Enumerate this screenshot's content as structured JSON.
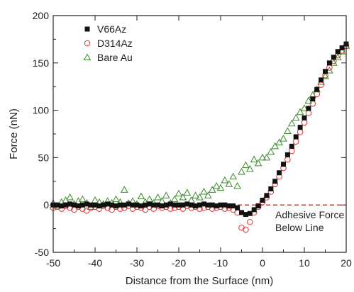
{
  "chart_data": {
    "type": "scatter",
    "xlabel": "Distance from the Surface (nm)",
    "ylabel": "Force (nN)",
    "xlim": [
      -50,
      20
    ],
    "ylim": [
      -50,
      200
    ],
    "xticks": [
      "-50",
      "-40",
      "-30",
      "-20",
      "-10",
      "0",
      "10",
      "20"
    ],
    "yticks": [
      "-50",
      "0",
      "50",
      "100",
      "150",
      "200"
    ],
    "legend_position": "top-left",
    "baseline": {
      "y": 0,
      "color": "#e0302a",
      "style": "dashed"
    },
    "annotation": {
      "lines": [
        "Adhesive Force",
        "Below Line"
      ],
      "x": 1,
      "y": -13
    },
    "series": [
      {
        "name": "V66Az",
        "marker": "square",
        "color": "#111111",
        "points": [
          [
            -50,
            0
          ],
          [
            -49,
            0
          ],
          [
            -48,
            -1
          ],
          [
            -47,
            0
          ],
          [
            -46,
            1
          ],
          [
            -45,
            0
          ],
          [
            -44,
            -1
          ],
          [
            -43,
            0
          ],
          [
            -42,
            1
          ],
          [
            -41,
            0
          ],
          [
            -40,
            0
          ],
          [
            -39,
            -1
          ],
          [
            -38,
            0
          ],
          [
            -37,
            1
          ],
          [
            -36,
            0
          ],
          [
            -35,
            -1
          ],
          [
            -34,
            0
          ],
          [
            -33,
            0
          ],
          [
            -32,
            1
          ],
          [
            -31,
            0
          ],
          [
            -30,
            0
          ],
          [
            -29,
            -1
          ],
          [
            -28,
            0
          ],
          [
            -27,
            1
          ],
          [
            -26,
            0
          ],
          [
            -25,
            0
          ],
          [
            -24,
            -1
          ],
          [
            -23,
            0
          ],
          [
            -22,
            1
          ],
          [
            -21,
            0
          ],
          [
            -20,
            0
          ],
          [
            -19,
            0
          ],
          [
            -18,
            1
          ],
          [
            -17,
            0
          ],
          [
            -16,
            -1
          ],
          [
            -15,
            0
          ],
          [
            -14,
            1
          ],
          [
            -13,
            0
          ],
          [
            -12,
            0
          ],
          [
            -11,
            -1
          ],
          [
            -10,
            0
          ],
          [
            -9,
            0
          ],
          [
            -8,
            -1
          ],
          [
            -7,
            -1
          ],
          [
            -6,
            -3
          ],
          [
            -5,
            -8
          ],
          [
            -4,
            -10
          ],
          [
            -3,
            -9
          ],
          [
            -2,
            -5
          ],
          [
            -1,
            -1
          ],
          [
            0,
            5
          ],
          [
            1,
            10
          ],
          [
            2,
            17
          ],
          [
            3,
            25
          ],
          [
            4,
            34
          ],
          [
            5,
            43
          ],
          [
            6,
            53
          ],
          [
            7,
            62
          ],
          [
            8,
            72
          ],
          [
            9,
            82
          ],
          [
            10,
            92
          ],
          [
            11,
            102
          ],
          [
            12,
            112
          ],
          [
            13,
            122
          ],
          [
            14,
            132
          ],
          [
            15,
            141
          ],
          [
            16,
            150
          ],
          [
            17,
            156
          ],
          [
            18,
            162
          ],
          [
            19,
            166
          ],
          [
            20,
            170
          ]
        ]
      },
      {
        "name": "D314Az",
        "marker": "circle",
        "color": "#e0302a",
        "points": [
          [
            -50,
            -3
          ],
          [
            -49,
            -2
          ],
          [
            -48,
            -4
          ],
          [
            -47,
            -1
          ],
          [
            -46,
            -3
          ],
          [
            -45,
            -5
          ],
          [
            -44,
            -2
          ],
          [
            -43,
            -4
          ],
          [
            -42,
            -6
          ],
          [
            -41,
            -3
          ],
          [
            -40,
            -2
          ],
          [
            -39,
            -4
          ],
          [
            -38,
            -1
          ],
          [
            -37,
            -3
          ],
          [
            -36,
            -5
          ],
          [
            -35,
            -2
          ],
          [
            -34,
            -4
          ],
          [
            -33,
            -3
          ],
          [
            -32,
            -1
          ],
          [
            -31,
            -4
          ],
          [
            -30,
            -2
          ],
          [
            -29,
            -3
          ],
          [
            -28,
            -5
          ],
          [
            -27,
            -2
          ],
          [
            -26,
            -4
          ],
          [
            -25,
            -1
          ],
          [
            -24,
            -3
          ],
          [
            -23,
            -2
          ],
          [
            -22,
            -4
          ],
          [
            -21,
            -3
          ],
          [
            -20,
            -2
          ],
          [
            -19,
            -4
          ],
          [
            -18,
            -1
          ],
          [
            -17,
            -3
          ],
          [
            -16,
            -2
          ],
          [
            -15,
            -4
          ],
          [
            -14,
            -3
          ],
          [
            -13,
            -2
          ],
          [
            -12,
            -4
          ],
          [
            -11,
            -3
          ],
          [
            -10,
            -2
          ],
          [
            -9,
            -4
          ],
          [
            -8,
            -3
          ],
          [
            -7,
            -5
          ],
          [
            -6,
            -8
          ],
          [
            -5,
            -24
          ],
          [
            -4,
            -26
          ],
          [
            -3,
            -18
          ],
          [
            -2,
            -8
          ],
          [
            -1,
            -2
          ],
          [
            0,
            3
          ],
          [
            1,
            8
          ],
          [
            2,
            14
          ],
          [
            3,
            22
          ],
          [
            4,
            30
          ],
          [
            5,
            39
          ],
          [
            6,
            48
          ],
          [
            7,
            57
          ],
          [
            8,
            67
          ],
          [
            9,
            77
          ],
          [
            10,
            87
          ],
          [
            11,
            97
          ],
          [
            12,
            107
          ],
          [
            13,
            117
          ],
          [
            14,
            127
          ],
          [
            15,
            137
          ],
          [
            16,
            145
          ],
          [
            17,
            152
          ],
          [
            18,
            158
          ],
          [
            19,
            163
          ],
          [
            20,
            168
          ]
        ]
      },
      {
        "name": "Bare Au",
        "marker": "triangle",
        "color": "#3a8a2a",
        "points": [
          [
            -50,
            2
          ],
          [
            -49,
            -1
          ],
          [
            -48,
            3
          ],
          [
            -47,
            5
          ],
          [
            -46,
            8
          ],
          [
            -45,
            1
          ],
          [
            -44,
            4
          ],
          [
            -43,
            6
          ],
          [
            -42,
            2
          ],
          [
            -41,
            -2
          ],
          [
            -40,
            5
          ],
          [
            -39,
            3
          ],
          [
            -38,
            1
          ],
          [
            -37,
            4
          ],
          [
            -36,
            2
          ],
          [
            -35,
            6
          ],
          [
            -34,
            3
          ],
          [
            -33,
            16
          ],
          [
            -32,
            2
          ],
          [
            -31,
            4
          ],
          [
            -30,
            1
          ],
          [
            -29,
            9
          ],
          [
            -28,
            3
          ],
          [
            -27,
            6
          ],
          [
            -26,
            2
          ],
          [
            -25,
            8
          ],
          [
            -24,
            4
          ],
          [
            -23,
            10
          ],
          [
            -22,
            2
          ],
          [
            -21,
            6
          ],
          [
            -20,
            12
          ],
          [
            -19,
            8
          ],
          [
            -18,
            13
          ],
          [
            -17,
            5
          ],
          [
            -16,
            10
          ],
          [
            -15,
            8
          ],
          [
            -14,
            14
          ],
          [
            -13,
            10
          ],
          [
            -12,
            16
          ],
          [
            -11,
            20
          ],
          [
            -10,
            18
          ],
          [
            -9,
            26
          ],
          [
            -8,
            22
          ],
          [
            -7,
            30
          ],
          [
            -6,
            20
          ],
          [
            -5,
            35
          ],
          [
            -4,
            42
          ],
          [
            -3,
            38
          ],
          [
            -2,
            48
          ],
          [
            -1,
            44
          ],
          [
            0,
            50
          ],
          [
            1,
            50
          ],
          [
            2,
            56
          ],
          [
            3,
            62
          ],
          [
            4,
            66
          ],
          [
            5,
            70
          ],
          [
            6,
            78
          ],
          [
            7,
            86
          ],
          [
            8,
            92
          ],
          [
            9,
            98
          ],
          [
            10,
            102
          ],
          [
            11,
            110
          ],
          [
            12,
            116
          ],
          [
            13,
            122
          ],
          [
            14,
            130
          ],
          [
            15,
            136
          ],
          [
            16,
            142
          ],
          [
            17,
            150
          ],
          [
            18,
            156
          ],
          [
            19,
            162
          ],
          [
            20,
            168
          ]
        ]
      }
    ]
  }
}
